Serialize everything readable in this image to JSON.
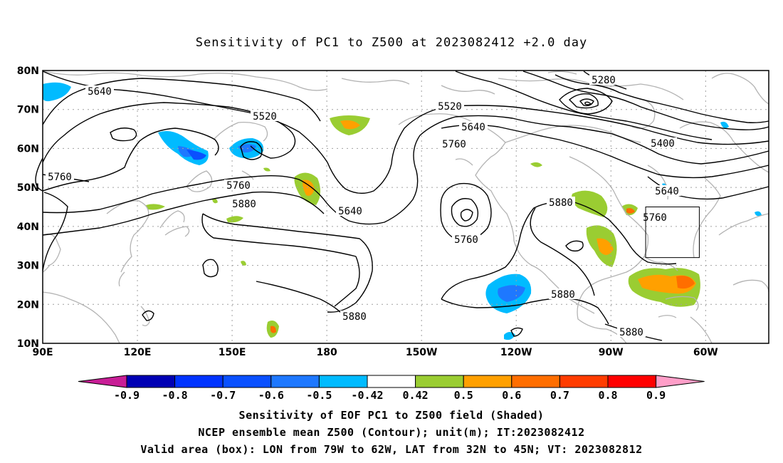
{
  "title": "Sensitivity of PC1 to Z500 at 2023082412 +2.0 day",
  "map": {
    "lat_labels": [
      "80N",
      "70N",
      "60N",
      "50N",
      "40N",
      "30N",
      "20N",
      "10N"
    ],
    "lon_labels": [
      "90E",
      "120E",
      "150E",
      "180",
      "150W",
      "120W",
      "90W",
      "60W"
    ],
    "lon_range_deg": [
      90,
      320
    ],
    "lat_range_deg": [
      10,
      80
    ],
    "grid": "dotted",
    "contour_labels": [
      "5640",
      "5520",
      "5520",
      "5280",
      "5640",
      "5760",
      "5400",
      "5760",
      "5760",
      "5880",
      "5640",
      "5880",
      "5640",
      "5760",
      "5760",
      "5880",
      "5880",
      "5880"
    ],
    "valid_box": {
      "lon_from": -79,
      "lon_to": -62,
      "lat_from": 32,
      "lat_to": 45
    }
  },
  "colorbar": {
    "labels": [
      "-0.9",
      "-0.8",
      "-0.7",
      "-0.6",
      "-0.5",
      "-0.42",
      "0.42",
      "0.5",
      "0.6",
      "0.7",
      "0.8",
      "0.9"
    ],
    "colors": [
      "#0000b4",
      "#0033ff",
      "#0a50ff",
      "#1e78ff",
      "#00bbff",
      "#ffffff",
      "#9acd32",
      "#ffa000",
      "#ff6e00",
      "#ff3c00",
      "#ff0000"
    ],
    "low_extend_color": "#c81e96",
    "high_extend_color": "#ff9ec8"
  },
  "caption": {
    "line1": "Sensitivity of EOF PC1 to Z500 field (Shaded)",
    "line2": "NCEP ensemble mean Z500 (Contour); unit(m); IT:2023082412",
    "line3": "Valid area (box): LON from 79W to 62W, LAT from 32N to 45N; VT: 2023082812"
  }
}
